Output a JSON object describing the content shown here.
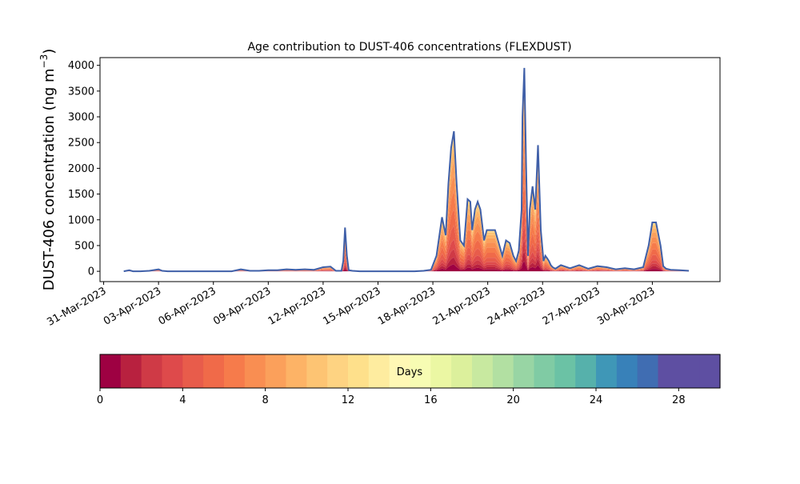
{
  "chart_data": {
    "type": "area",
    "title": "Age contribution to DUST-406 concentrations (FLEXDUST)",
    "ylabel_main": "DUST-406 concentration (ng m",
    "ylabel_sup": "−3",
    "ylabel_close": ")",
    "xlabel": "",
    "ylim": [
      -200,
      4150
    ],
    "yticks": [
      0,
      500,
      1000,
      1500,
      2000,
      2500,
      3000,
      3500,
      4000
    ],
    "ytick_labels": [
      "0",
      "500",
      "1000",
      "1500",
      "2000",
      "2500",
      "3000",
      "3500",
      "4000"
    ],
    "xlim_days": [
      -0.2,
      33.7
    ],
    "xticks_days": [
      0,
      3,
      6,
      9,
      12,
      15,
      18,
      21,
      24,
      27,
      30
    ],
    "xtick_labels": [
      "31-Mar-2023",
      "03-Apr-2023",
      "06-Apr-2023",
      "09-Apr-2023",
      "12-Apr-2023",
      "15-Apr-2023",
      "18-Apr-2023",
      "21-Apr-2023",
      "24-Apr-2023",
      "27-Apr-2023",
      "30-Apr-2023"
    ],
    "total_line_color": "#3f5fa8",
    "total_series": {
      "x": [
        1.1,
        1.4,
        1.6,
        2,
        2.5,
        3,
        3.2,
        3.5,
        4,
        5,
        6,
        7,
        7.5,
        8,
        8.5,
        9,
        9.5,
        10,
        10.5,
        11,
        11.5,
        12,
        12.4,
        12.7,
        13,
        13.1,
        13.2,
        13.3,
        13.4,
        13.6,
        14,
        15,
        16,
        17,
        17.5,
        17.9,
        18.2,
        18.5,
        18.7,
        18.85,
        19,
        19.15,
        19.3,
        19.5,
        19.7,
        19.9,
        20.05,
        20.15,
        20.3,
        20.45,
        20.6,
        20.8,
        20.95,
        21.1,
        21.3,
        21.4,
        21.6,
        21.8,
        22,
        22.2,
        22.4,
        22.55,
        22.7,
        22.85,
        22.9,
        23,
        23.1,
        23.2,
        23.3,
        23.45,
        23.6,
        23.75,
        23.9,
        24.05,
        24.15,
        24.25,
        24.35,
        24.45,
        24.55,
        24.7,
        25,
        25.5,
        26,
        26.5,
        27,
        27.5,
        28,
        28.5,
        29,
        29.5,
        29.8,
        30,
        30.2,
        30.45,
        30.6,
        30.75,
        31,
        31.5,
        32
      ],
      "y": [
        0,
        20,
        0,
        0,
        10,
        40,
        10,
        0,
        0,
        0,
        0,
        0,
        40,
        10,
        10,
        20,
        20,
        40,
        30,
        40,
        30,
        80,
        90,
        10,
        10,
        200,
        850,
        300,
        20,
        10,
        0,
        0,
        0,
        0,
        10,
        30,
        300,
        1050,
        700,
        1700,
        2400,
        2720,
        1700,
        600,
        500,
        1400,
        1350,
        800,
        1200,
        1350,
        1200,
        600,
        800,
        800,
        800,
        800,
        550,
        300,
        600,
        550,
        300,
        200,
        400,
        1200,
        3000,
        3950,
        2000,
        300,
        1200,
        1650,
        1200,
        2450,
        800,
        200,
        300,
        250,
        200,
        120,
        80,
        50,
        120,
        60,
        120,
        50,
        100,
        80,
        40,
        60,
        40,
        80,
        500,
        950,
        950,
        500,
        100,
        50,
        30,
        20,
        10
      ]
    },
    "age_layers": [
      {
        "days": "0-1",
        "color": "#9e0142",
        "frac": 0.05
      },
      {
        "days": "1-2",
        "color": "#b8213f",
        "frac": 0.05
      },
      {
        "days": "2-3",
        "color": "#cf3a46",
        "frac": 0.06
      },
      {
        "days": "3-4",
        "color": "#de4a4b",
        "frac": 0.07
      },
      {
        "days": "4-5",
        "color": "#e85c4b",
        "frac": 0.1
      },
      {
        "days": "5-6",
        "color": "#f06a49",
        "frac": 0.12
      },
      {
        "days": "6-7",
        "color": "#f67b4b",
        "frac": 0.13
      },
      {
        "days": "7-8",
        "color": "#f98e52",
        "frac": 0.12
      },
      {
        "days": "8-9",
        "color": "#fba05b",
        "frac": 0.1
      },
      {
        "days": "9-10",
        "color": "#fdb366",
        "frac": 0.08
      },
      {
        "days": "10-11",
        "color": "#fdc473",
        "frac": 0.06
      },
      {
        "days": "11-12",
        "color": "#fed382",
        "frac": 0.04
      },
      {
        "days": "12-13",
        "color": "#fee08b",
        "frac": 0.02
      }
    ]
  },
  "colorbar": {
    "label": "Days",
    "vmin": 0,
    "vmax": 30,
    "ticks": [
      0,
      4,
      8,
      12,
      16,
      20,
      24,
      28
    ],
    "tick_labels": [
      "0",
      "4",
      "8",
      "12",
      "16",
      "20",
      "24",
      "28"
    ],
    "colors": [
      "#9e0142",
      "#b8213f",
      "#cf3a46",
      "#de4a4b",
      "#e85c4b",
      "#f06a49",
      "#f67b4b",
      "#f98e52",
      "#fba05b",
      "#fdb366",
      "#fdc473",
      "#fed382",
      "#fee08b",
      "#feec9f",
      "#fff8b5",
      "#f7fcb3",
      "#ebf7a3",
      "#dcf09c",
      "#c8e9a0",
      "#b2e0a2",
      "#98d5a4",
      "#80cba4",
      "#6bc2a5",
      "#56b1ab",
      "#3f97b7",
      "#3881b9",
      "#406db2",
      "#5e4fa2",
      "#5e4fa2",
      "#5e4fa2"
    ]
  }
}
